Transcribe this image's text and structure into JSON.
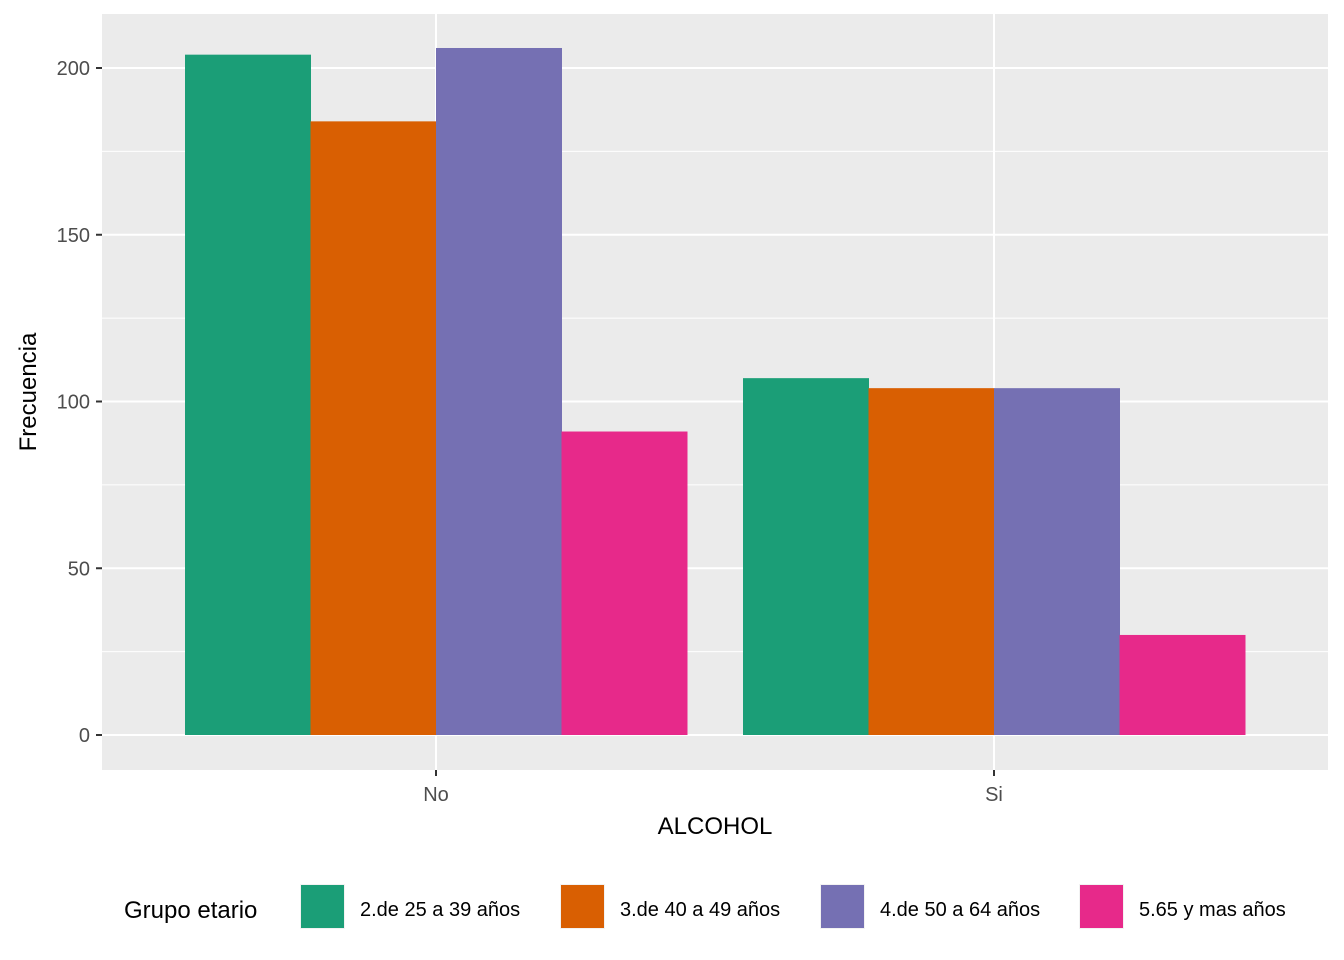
{
  "chart_data": {
    "type": "bar",
    "xlabel": "ALCOHOL",
    "ylabel": "Frecuencia",
    "categories": [
      "No",
      "Si"
    ],
    "ylim": [
      -8,
      215
    ],
    "yticks": [
      0,
      50,
      100,
      150,
      200
    ],
    "grid": true,
    "legend_position": "bottom",
    "legend_title": "Grupo etario",
    "series": [
      {
        "name": "2.de 25 a 39 años",
        "color": "#1b9e77",
        "values": [
          204,
          107
        ]
      },
      {
        "name": "3.de 40 a 49 años",
        "color": "#d95f02",
        "values": [
          184,
          104
        ]
      },
      {
        "name": "4.de 50 a 64 años",
        "color": "#7570b3",
        "values": [
          206,
          104
        ]
      },
      {
        "name": "5.65 y mas años",
        "color": "#e7298a",
        "values": [
          91,
          30
        ]
      }
    ]
  }
}
